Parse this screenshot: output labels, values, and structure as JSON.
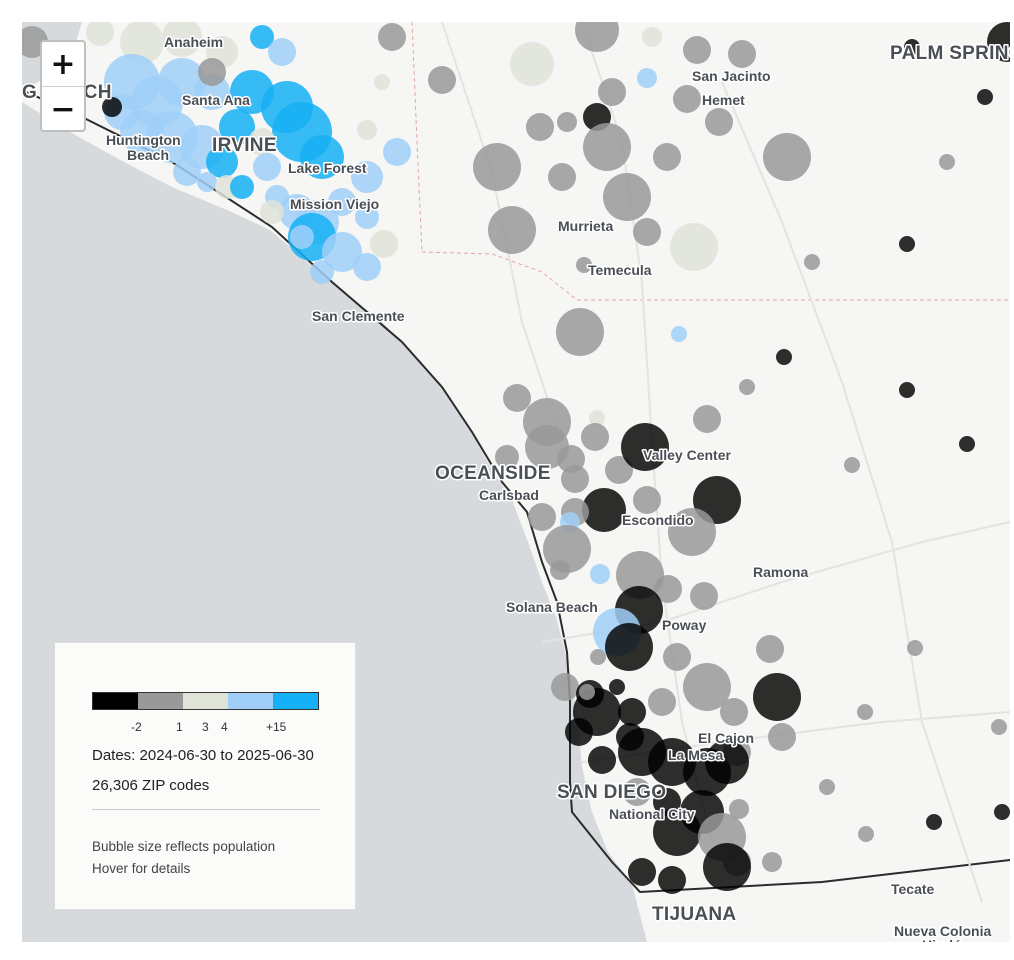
{
  "map": {
    "zoom_in_label": "+",
    "zoom_out_label": "−",
    "colors": {
      "water": "#d7dadd",
      "land": "#f6f6f4",
      "bin1": "#000000",
      "bin2": "#999999",
      "bin3": "#dfe3d8",
      "bin4": "#9fcff8",
      "bin5": "#15b0f5"
    },
    "labels": [
      {
        "text": "Anaheim",
        "style": "small"
      },
      {
        "text": "G BEACH",
        "style": "big"
      },
      {
        "text": "Santa Ana",
        "style": "small"
      },
      {
        "text": "Huntington",
        "style": "small"
      },
      {
        "text": "Beach",
        "style": "small"
      },
      {
        "text": "IRVINE",
        "style": "big"
      },
      {
        "text": "Lake Forest",
        "style": "small"
      },
      {
        "text": "Mission Viejo",
        "style": "small"
      },
      {
        "text": "San Clemente",
        "style": "small"
      },
      {
        "text": "San Jacinto",
        "style": "small"
      },
      {
        "text": "Hemet",
        "style": "small"
      },
      {
        "text": "PALM SPRINGS",
        "style": "big"
      },
      {
        "text": "Murrieta",
        "style": "small"
      },
      {
        "text": "Temecula",
        "style": "small"
      },
      {
        "text": "Valley Center",
        "style": "small"
      },
      {
        "text": "OCEANSIDE",
        "style": "big"
      },
      {
        "text": "Carlsbad",
        "style": "small"
      },
      {
        "text": "Escondido",
        "style": "small"
      },
      {
        "text": "Ramona",
        "style": "small"
      },
      {
        "text": "Solana Beach",
        "style": "small"
      },
      {
        "text": "Poway",
        "style": "small"
      },
      {
        "text": "El Cajon",
        "style": "small"
      },
      {
        "text": "La Mesa",
        "style": "small"
      },
      {
        "text": "SAN DIEGO",
        "style": "big"
      },
      {
        "text": "National City",
        "style": "small"
      },
      {
        "text": "Tecate",
        "style": "small"
      },
      {
        "text": "TIJUANA",
        "style": "big"
      },
      {
        "text": "Nueva Colonia",
        "style": "small"
      },
      {
        "text": "Hindú",
        "style": "small"
      }
    ]
  },
  "legend": {
    "scale_colors": [
      "#000000",
      "#999999",
      "#dfe3d8",
      "#9fcff8",
      "#15b0f5"
    ],
    "ticks": [
      "-2",
      "1",
      "3",
      "4",
      "+15"
    ],
    "dates": "Dates: 2024-06-30 to 2025-06-30",
    "zip_count": "26,306 ZIP codes",
    "note_size": "Bubble size reflects population",
    "note_hover": "Hover for details"
  }
}
